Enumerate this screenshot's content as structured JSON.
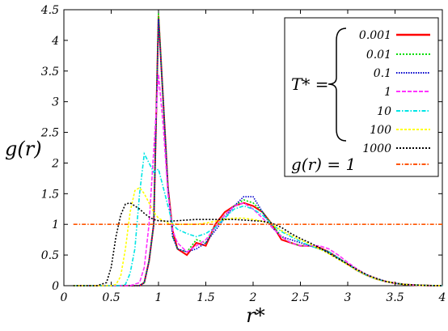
{
  "chart_data": {
    "type": "line",
    "xlabel": "r*",
    "ylabel": "g(r)",
    "xlim": [
      0,
      4
    ],
    "ylim": [
      0,
      4.5
    ],
    "x_ticks": [
      "0",
      "0.5",
      "1",
      "1.5",
      "2",
      "2.5",
      "3",
      "3.5",
      "4"
    ],
    "y_ticks": [
      "0",
      "0.5",
      "1",
      "1.5",
      "2",
      "2.5",
      "3",
      "3.5",
      "4",
      "4.5"
    ],
    "grid": false,
    "legend_position": "top-right",
    "legend_group_label": "T* =",
    "series": [
      {
        "name": "0.001",
        "color": "#ff0000",
        "dash": "solid",
        "x": [
          0.1,
          0.5,
          0.7,
          0.8,
          0.85,
          0.9,
          0.95,
          1.0,
          1.05,
          1.1,
          1.15,
          1.2,
          1.3,
          1.4,
          1.5,
          1.6,
          1.7,
          1.8,
          1.9,
          2.0,
          2.1,
          2.2,
          2.3,
          2.4,
          2.5,
          2.6,
          2.7,
          2.8,
          2.9,
          3.0,
          3.1,
          3.2,
          3.3,
          3.4,
          3.5,
          3.6,
          3.7,
          3.8,
          3.9,
          4.0
        ],
        "y": [
          0,
          0,
          0,
          0,
          0.05,
          0.4,
          1.0,
          4.4,
          3.0,
          1.6,
          0.9,
          0.6,
          0.5,
          0.7,
          0.65,
          1.0,
          1.2,
          1.3,
          1.35,
          1.3,
          1.2,
          1.0,
          0.75,
          0.7,
          0.65,
          0.65,
          0.62,
          0.55,
          0.45,
          0.35,
          0.25,
          0.17,
          0.11,
          0.07,
          0.04,
          0.02,
          0.01,
          0.005,
          0,
          0
        ]
      },
      {
        "name": "0.01",
        "color": "#00dd00",
        "dash": "2 2",
        "x": [
          0.1,
          0.5,
          0.7,
          0.8,
          0.85,
          0.9,
          0.95,
          1.0,
          1.05,
          1.1,
          1.15,
          1.2,
          1.3,
          1.4,
          1.5,
          1.6,
          1.7,
          1.8,
          1.9,
          2.0,
          2.1,
          2.2,
          2.3,
          2.4,
          2.5,
          2.6,
          2.7,
          2.8,
          2.9,
          3.0,
          3.1,
          3.2,
          3.3,
          3.4,
          3.5,
          3.6,
          3.7,
          3.8,
          3.9,
          4.0
        ],
        "y": [
          0,
          0,
          0,
          0,
          0.05,
          0.4,
          1.0,
          4.45,
          3.0,
          1.6,
          0.8,
          0.6,
          0.55,
          0.75,
          0.7,
          0.95,
          1.15,
          1.3,
          1.4,
          1.35,
          1.2,
          1.0,
          0.8,
          0.7,
          0.65,
          0.65,
          0.6,
          0.55,
          0.45,
          0.35,
          0.25,
          0.17,
          0.11,
          0.07,
          0.04,
          0.02,
          0.01,
          0.005,
          0,
          0
        ]
      },
      {
        "name": "0.1",
        "color": "#0000cc",
        "dash": "1.5 1.5",
        "x": [
          0.1,
          0.5,
          0.7,
          0.8,
          0.85,
          0.9,
          0.95,
          1.0,
          1.05,
          1.1,
          1.15,
          1.2,
          1.3,
          1.4,
          1.5,
          1.6,
          1.7,
          1.8,
          1.9,
          2.0,
          2.1,
          2.2,
          2.3,
          2.4,
          2.5,
          2.6,
          2.7,
          2.8,
          2.9,
          3.0,
          3.1,
          3.2,
          3.3,
          3.4,
          3.5,
          3.6,
          3.7,
          3.8,
          3.9,
          4.0
        ],
        "y": [
          0,
          0,
          0,
          0,
          0.05,
          0.4,
          1.0,
          4.35,
          3.0,
          1.6,
          0.8,
          0.6,
          0.55,
          0.6,
          0.7,
          0.9,
          1.1,
          1.3,
          1.45,
          1.45,
          1.2,
          0.95,
          0.8,
          0.75,
          0.7,
          0.65,
          0.6,
          0.55,
          0.45,
          0.35,
          0.25,
          0.17,
          0.11,
          0.07,
          0.04,
          0.02,
          0.01,
          0.005,
          0,
          0
        ]
      },
      {
        "name": "1",
        "color": "#ff33ff",
        "dash": "5 2",
        "x": [
          0.1,
          0.5,
          0.7,
          0.8,
          0.85,
          0.9,
          0.95,
          1.0,
          1.05,
          1.1,
          1.15,
          1.2,
          1.3,
          1.4,
          1.5,
          1.6,
          1.7,
          1.8,
          1.9,
          2.0,
          2.1,
          2.2,
          2.3,
          2.4,
          2.5,
          2.6,
          2.7,
          2.8,
          2.9,
          3.0,
          3.1,
          3.2,
          3.3,
          3.4,
          3.5,
          3.6,
          3.7,
          3.8,
          3.9,
          4.0
        ],
        "y": [
          0,
          0,
          0,
          0.05,
          0.3,
          1.0,
          2.2,
          3.45,
          2.6,
          1.5,
          0.9,
          0.7,
          0.55,
          0.65,
          0.75,
          0.95,
          1.15,
          1.3,
          1.35,
          1.25,
          1.1,
          0.95,
          0.8,
          0.7,
          0.65,
          0.65,
          0.65,
          0.6,
          0.5,
          0.38,
          0.27,
          0.18,
          0.12,
          0.07,
          0.04,
          0.02,
          0.01,
          0.005,
          0,
          0
        ]
      },
      {
        "name": "10",
        "color": "#00e5e5",
        "dash": "5 2 1.5 2",
        "x": [
          0.1,
          0.5,
          0.6,
          0.65,
          0.7,
          0.75,
          0.8,
          0.85,
          0.9,
          0.95,
          1.0,
          1.05,
          1.1,
          1.15,
          1.2,
          1.3,
          1.4,
          1.5,
          1.6,
          1.7,
          1.8,
          1.9,
          2.0,
          2.1,
          2.2,
          2.3,
          2.4,
          2.5,
          2.6,
          2.7,
          2.8,
          2.9,
          3.0,
          3.1,
          3.2,
          3.3,
          3.4,
          3.5,
          3.6,
          3.8,
          4.0
        ],
        "y": [
          0,
          0,
          0,
          0.02,
          0.2,
          0.6,
          1.5,
          2.15,
          2.0,
          1.85,
          1.9,
          1.6,
          1.3,
          1.0,
          0.92,
          0.85,
          0.8,
          0.85,
          0.95,
          1.1,
          1.25,
          1.3,
          1.25,
          1.15,
          1.0,
          0.88,
          0.8,
          0.72,
          0.65,
          0.6,
          0.55,
          0.45,
          0.35,
          0.25,
          0.17,
          0.11,
          0.07,
          0.04,
          0.02,
          0.005,
          0
        ]
      },
      {
        "name": "100",
        "color": "#ffff00",
        "dash": "3 2",
        "x": [
          0.1,
          0.5,
          0.55,
          0.6,
          0.65,
          0.7,
          0.75,
          0.8,
          0.85,
          0.9,
          0.95,
          1.0,
          1.1,
          1.2,
          1.3,
          1.4,
          1.5,
          1.6,
          1.7,
          1.8,
          1.9,
          2.0,
          2.1,
          2.2,
          2.3,
          2.4,
          2.5,
          2.6,
          2.7,
          2.8,
          2.9,
          3.0,
          3.1,
          3.2,
          3.3,
          3.4,
          3.5,
          3.6,
          3.8,
          4.0
        ],
        "y": [
          0,
          0,
          0.02,
          0.15,
          0.6,
          1.2,
          1.55,
          1.6,
          1.5,
          1.35,
          1.2,
          1.1,
          1.02,
          1.0,
          1.0,
          1.0,
          1.02,
          1.05,
          1.08,
          1.1,
          1.1,
          1.08,
          1.05,
          1.0,
          0.9,
          0.82,
          0.75,
          0.68,
          0.6,
          0.52,
          0.43,
          0.34,
          0.25,
          0.17,
          0.11,
          0.07,
          0.04,
          0.02,
          0.005,
          0
        ]
      },
      {
        "name": "1000",
        "color": "#000000",
        "dash": "2 2",
        "x": [
          0.1,
          0.35,
          0.45,
          0.5,
          0.55,
          0.6,
          0.65,
          0.7,
          0.75,
          0.8,
          0.85,
          0.9,
          0.95,
          1.0,
          1.1,
          1.2,
          1.3,
          1.4,
          1.5,
          1.6,
          1.7,
          1.8,
          1.9,
          2.0,
          2.1,
          2.2,
          2.3,
          2.4,
          2.5,
          2.6,
          2.7,
          2.8,
          2.9,
          3.0,
          3.1,
          3.2,
          3.3,
          3.4,
          3.5,
          3.6,
          3.8,
          4.0
        ],
        "y": [
          0,
          0,
          0.05,
          0.3,
          0.8,
          1.15,
          1.33,
          1.35,
          1.3,
          1.25,
          1.18,
          1.12,
          1.08,
          1.06,
          1.05,
          1.06,
          1.07,
          1.08,
          1.08,
          1.08,
          1.08,
          1.08,
          1.07,
          1.06,
          1.05,
          1.02,
          0.95,
          0.85,
          0.77,
          0.7,
          0.62,
          0.53,
          0.44,
          0.35,
          0.26,
          0.18,
          0.12,
          0.07,
          0.04,
          0.02,
          0.005,
          0
        ]
      },
      {
        "name": "g(r) = 1",
        "color": "#ff5500",
        "dash": "5 2 1.5 2",
        "x": [
          0.1,
          4.0
        ],
        "y": [
          1,
          1
        ]
      }
    ]
  }
}
